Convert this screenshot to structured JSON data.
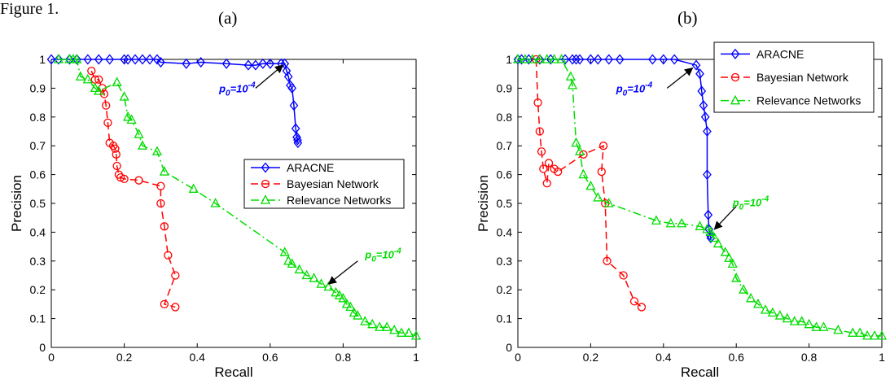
{
  "figure": {
    "header_text": "Figure 1.",
    "panel_labels": [
      "(a)",
      "(b)"
    ]
  },
  "chart_data": [
    {
      "type": "line",
      "panel": "(a)",
      "xlabel": "Recall",
      "ylabel": "Precision",
      "xlim": [
        0,
        1
      ],
      "ylim": [
        0,
        1
      ],
      "xticks": [
        "0",
        "0.2",
        "0.4",
        "0.6",
        "0.8",
        "1"
      ],
      "yticks": [
        "0",
        "0.1",
        "0.2",
        "0.3",
        "0.4",
        "0.5",
        "0.6",
        "0.7",
        "0.8",
        "0.9",
        "1"
      ],
      "grid": false,
      "legend_position": "middle-right",
      "series": [
        {
          "name": "ARACNE",
          "color": "#0000ff",
          "marker": "diamond",
          "line_style": "solid",
          "x": [
            0.0,
            0.02,
            0.05,
            0.07,
            0.1,
            0.13,
            0.16,
            0.2,
            0.21,
            0.23,
            0.25,
            0.27,
            0.29,
            0.3,
            0.37,
            0.41,
            0.48,
            0.54,
            0.56,
            0.58,
            0.6,
            0.63,
            0.64,
            0.645,
            0.65,
            0.655,
            0.66,
            0.665,
            0.67,
            0.673,
            0.675,
            0.676
          ],
          "y": [
            1.0,
            1.0,
            1.0,
            1.0,
            1.0,
            1.0,
            1.0,
            1.0,
            1.0,
            1.0,
            1.0,
            1.0,
            1.0,
            0.99,
            0.985,
            0.99,
            0.985,
            0.98,
            0.98,
            0.985,
            0.985,
            0.985,
            0.985,
            0.96,
            0.94,
            0.91,
            0.9,
            0.84,
            0.76,
            0.73,
            0.72,
            0.71
          ]
        },
        {
          "name": "Bayesian Network",
          "color": "#ff0000",
          "marker": "circle",
          "line_style": "dashed",
          "x": [
            0.11,
            0.12,
            0.13,
            0.14,
            0.145,
            0.15,
            0.155,
            0.16,
            0.17,
            0.175,
            0.178,
            0.18,
            0.185,
            0.19,
            0.2,
            0.24,
            0.3,
            0.3,
            0.31,
            0.32,
            0.34,
            0.31,
            0.34
          ],
          "y": [
            0.96,
            0.93,
            0.93,
            0.9,
            0.88,
            0.84,
            0.78,
            0.71,
            0.7,
            0.69,
            0.67,
            0.63,
            0.6,
            0.59,
            0.585,
            0.58,
            0.56,
            0.5,
            0.42,
            0.32,
            0.25,
            0.15,
            0.14
          ]
        },
        {
          "name": "Relevance Networks",
          "color": "#00dd00",
          "marker": "triangle",
          "line_style": "dashdot",
          "x": [
            0.02,
            0.05,
            0.06,
            0.07,
            0.08,
            0.1,
            0.12,
            0.13,
            0.18,
            0.2,
            0.21,
            0.22,
            0.24,
            0.25,
            0.29,
            0.31,
            0.39,
            0.45,
            0.64,
            0.65,
            0.66,
            0.68,
            0.7,
            0.72,
            0.74,
            0.76,
            0.78,
            0.79,
            0.8,
            0.81,
            0.82,
            0.83,
            0.84,
            0.86,
            0.88,
            0.9,
            0.92,
            0.94,
            0.96,
            0.98,
            1.0
          ],
          "y": [
            1.0,
            1.0,
            1.0,
            1.0,
            0.94,
            0.93,
            0.9,
            0.89,
            0.92,
            0.87,
            0.8,
            0.79,
            0.74,
            0.7,
            0.68,
            0.61,
            0.55,
            0.5,
            0.33,
            0.3,
            0.29,
            0.27,
            0.25,
            0.24,
            0.22,
            0.21,
            0.19,
            0.18,
            0.17,
            0.15,
            0.14,
            0.12,
            0.11,
            0.09,
            0.08,
            0.07,
            0.07,
            0.06,
            0.05,
            0.05,
            0.04
          ]
        }
      ],
      "annotations": [
        {
          "text": "p0=10-4",
          "base": "p",
          "sub": "0",
          "rest": "=10",
          "sup": "-4",
          "color": "#0000ff",
          "label_at": [
            0.46,
            0.885
          ],
          "arrow_from": [
            0.56,
            0.9
          ],
          "arrow_to": [
            0.635,
            0.98
          ]
        },
        {
          "text": "p0=10-4",
          "base": "p",
          "sub": "0",
          "rest": "=10",
          "sup": "-4",
          "color": "#00dd00",
          "label_at": [
            0.86,
            0.31
          ],
          "arrow_from": [
            0.84,
            0.3
          ],
          "arrow_to": [
            0.76,
            0.22
          ]
        }
      ]
    },
    {
      "type": "line",
      "panel": "(b)",
      "xlabel": "Recall",
      "ylabel": "Precision",
      "xlim": [
        0,
        1
      ],
      "ylim": [
        0,
        1
      ],
      "xticks": [
        "0",
        "0.2",
        "0.4",
        "0.6",
        "0.8",
        "1"
      ],
      "yticks": [
        "0",
        "0.1",
        "0.2",
        "0.3",
        "0.4",
        "0.5",
        "0.6",
        "0.7",
        "0.8",
        "0.9",
        "1"
      ],
      "grid": false,
      "legend_position": "top-right",
      "series": [
        {
          "name": "ARACNE",
          "color": "#0000ff",
          "marker": "diamond",
          "line_style": "solid",
          "x": [
            0.0,
            0.01,
            0.03,
            0.06,
            0.09,
            0.13,
            0.15,
            0.16,
            0.17,
            0.2,
            0.22,
            0.25,
            0.28,
            0.37,
            0.4,
            0.43,
            0.49,
            0.5,
            0.505,
            0.51,
            0.515,
            0.52,
            0.52,
            0.523,
            0.525,
            0.528,
            0.53
          ],
          "y": [
            1.0,
            1.0,
            1.0,
            1.0,
            1.0,
            1.0,
            1.0,
            1.0,
            1.0,
            1.0,
            1.0,
            1.0,
            1.0,
            1.0,
            1.0,
            1.0,
            0.98,
            0.95,
            0.89,
            0.84,
            0.8,
            0.75,
            0.6,
            0.46,
            0.41,
            0.39,
            0.38
          ]
        },
        {
          "name": "Bayesian Network",
          "color": "#ff0000",
          "marker": "circle",
          "line_style": "dashed",
          "x": [
            0.05,
            0.055,
            0.06,
            0.065,
            0.07,
            0.08,
            0.085,
            0.1,
            0.11,
            0.18,
            0.235,
            0.23,
            0.24,
            0.245,
            0.29,
            0.32,
            0.34
          ],
          "y": [
            1.0,
            0.85,
            0.75,
            0.68,
            0.62,
            0.57,
            0.64,
            0.62,
            0.61,
            0.67,
            0.7,
            0.61,
            0.5,
            0.3,
            0.25,
            0.16,
            0.14
          ]
        },
        {
          "name": "Relevance Networks",
          "color": "#00dd00",
          "marker": "triangle",
          "line_style": "dashdot",
          "x": [
            0.0,
            0.02,
            0.04,
            0.06,
            0.08,
            0.1,
            0.12,
            0.145,
            0.15,
            0.16,
            0.17,
            0.18,
            0.2,
            0.22,
            0.25,
            0.38,
            0.42,
            0.45,
            0.5,
            0.52,
            0.53,
            0.54,
            0.55,
            0.57,
            0.58,
            0.59,
            0.6,
            0.62,
            0.64,
            0.66,
            0.68,
            0.7,
            0.72,
            0.74,
            0.76,
            0.78,
            0.8,
            0.82,
            0.84,
            0.88,
            0.92,
            0.94,
            0.96,
            0.98,
            1.0
          ],
          "y": [
            1.0,
            1.0,
            1.0,
            1.0,
            1.0,
            1.0,
            1.0,
            0.94,
            0.91,
            0.71,
            0.68,
            0.6,
            0.56,
            0.52,
            0.5,
            0.44,
            0.43,
            0.43,
            0.42,
            0.41,
            0.4,
            0.38,
            0.36,
            0.33,
            0.31,
            0.29,
            0.24,
            0.2,
            0.17,
            0.15,
            0.13,
            0.12,
            0.11,
            0.1,
            0.09,
            0.09,
            0.08,
            0.07,
            0.07,
            0.06,
            0.05,
            0.05,
            0.04,
            0.04,
            0.04
          ]
        }
      ],
      "annotations": [
        {
          "text": "p0=10-4",
          "base": "p",
          "sub": "0",
          "rest": "=10",
          "sup": "-4",
          "color": "#0000ff",
          "label_at": [
            0.27,
            0.885
          ],
          "arrow_from": [
            0.41,
            0.9
          ],
          "arrow_to": [
            0.48,
            0.97
          ]
        },
        {
          "text": "p0=10-4",
          "base": "p",
          "sub": "0",
          "rest": "=10",
          "sup": "-4",
          "color": "#00dd00",
          "label_at": [
            0.59,
            0.49
          ],
          "arrow_from": [
            0.6,
            0.49
          ],
          "arrow_to": [
            0.54,
            0.41
          ]
        }
      ]
    }
  ]
}
